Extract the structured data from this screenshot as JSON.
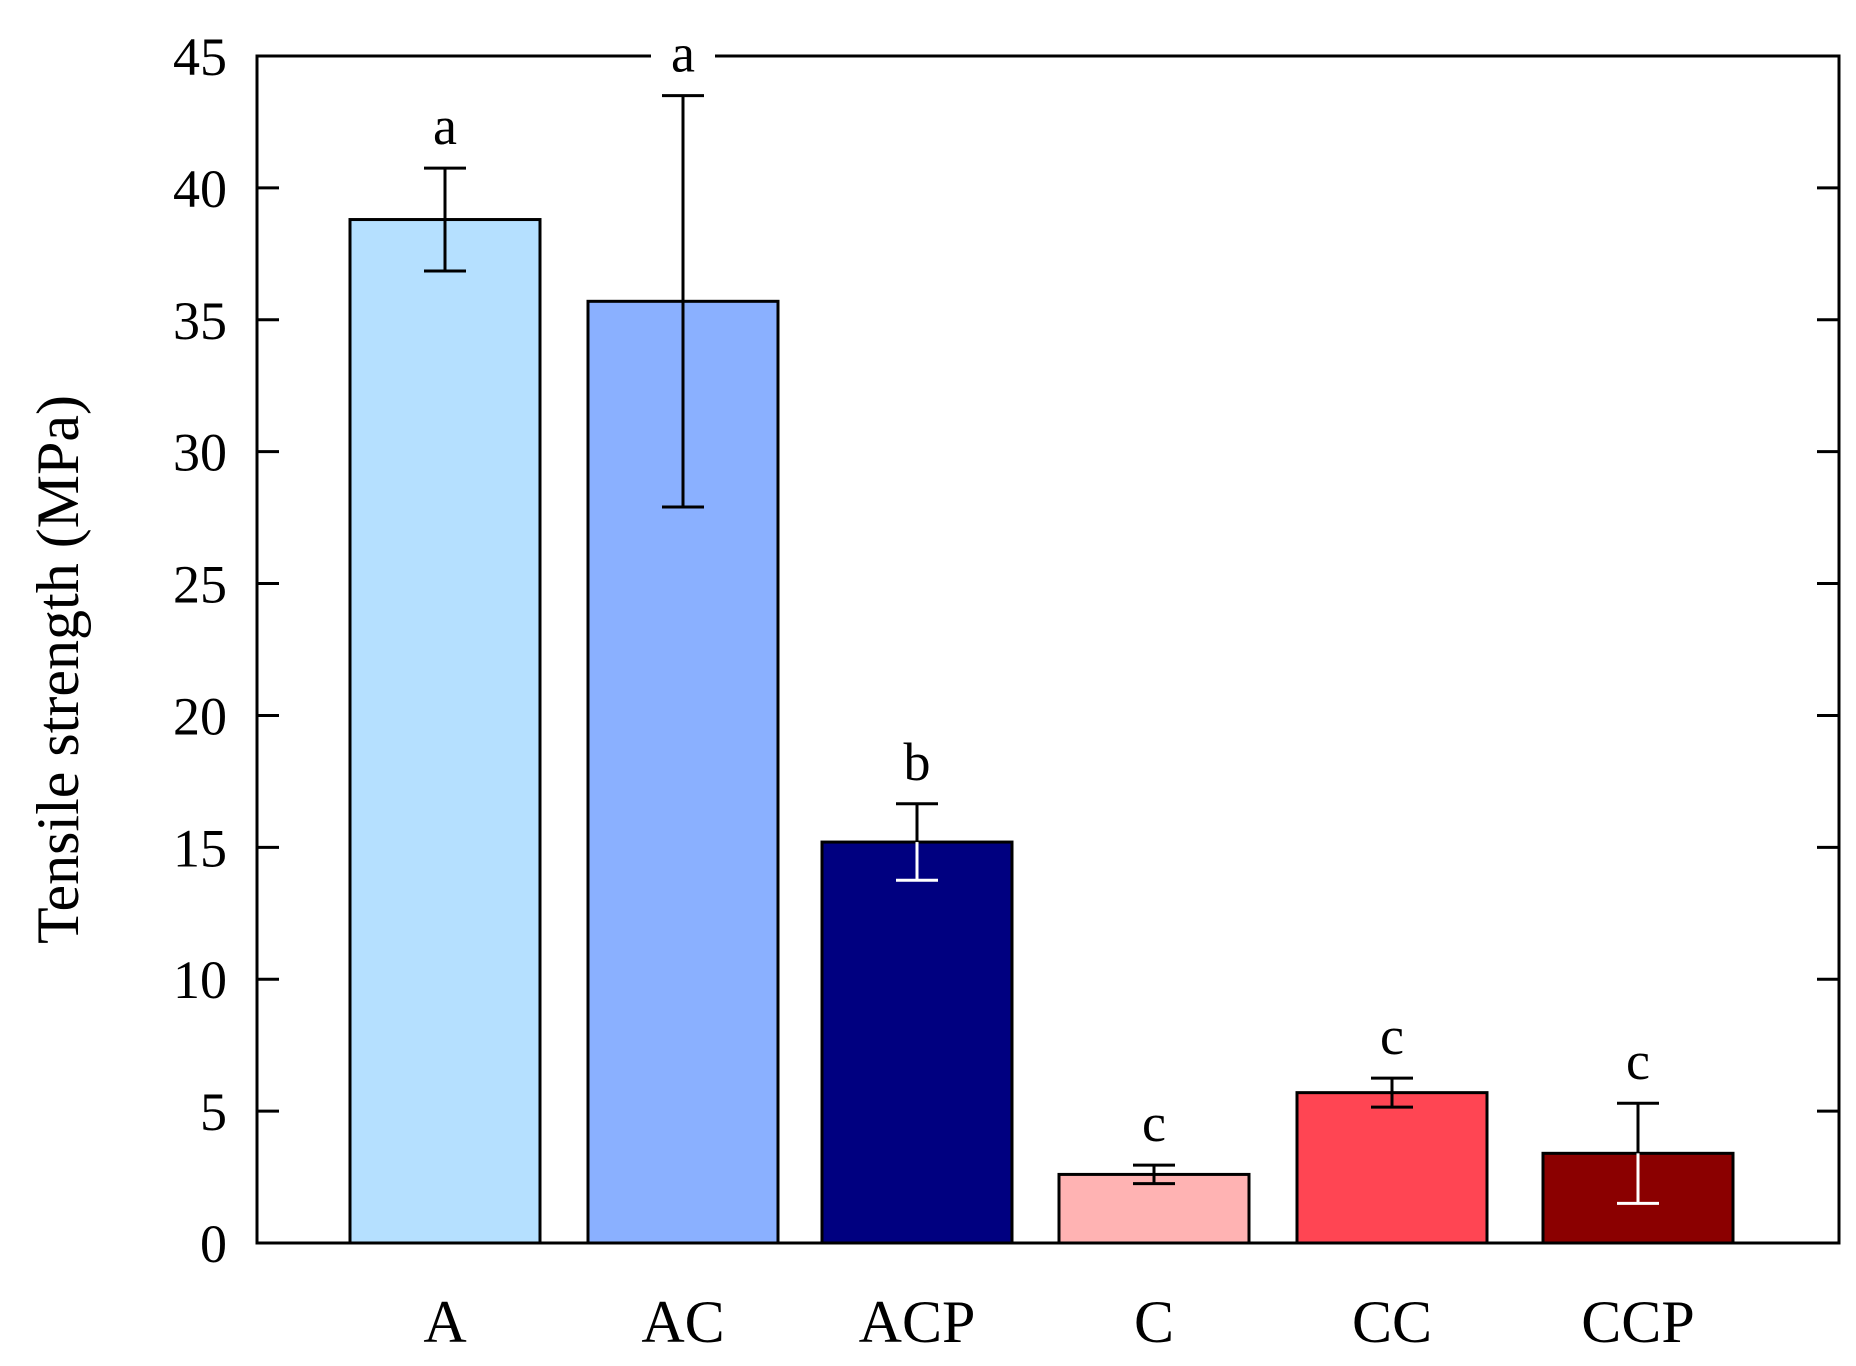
{
  "chart_data": {
    "type": "bar",
    "title": "",
    "xlabel": "",
    "ylabel": "Tensile strength (MPa)",
    "ylim": [
      0,
      45
    ],
    "yticks": [
      0,
      5,
      10,
      15,
      20,
      25,
      30,
      35,
      40,
      45
    ],
    "ytick_labels": [
      "0",
      "5",
      "10",
      "15",
      "20",
      "25",
      "30",
      "35",
      "40",
      "45"
    ],
    "grid": false,
    "categories": [
      "A",
      "AC",
      "ACP",
      "C",
      "CC",
      "CCP"
    ],
    "values": [
      38.8,
      35.7,
      15.2,
      2.6,
      5.7,
      3.4
    ],
    "errors": [
      1.95,
      7.8,
      1.45,
      0.35,
      0.55,
      1.9
    ],
    "significance": [
      "a",
      "a",
      "b",
      "c",
      "c",
      "c"
    ],
    "colors": [
      "#b5e0ff",
      "#8ab0ff",
      "#000080",
      "#ffb3b3",
      "#ff4553",
      "#8b0000"
    ],
    "errorbar_colors": [
      "#000000",
      "#000000",
      "#ffffff",
      "#000000",
      "#000000",
      "#ffffff"
    ]
  }
}
